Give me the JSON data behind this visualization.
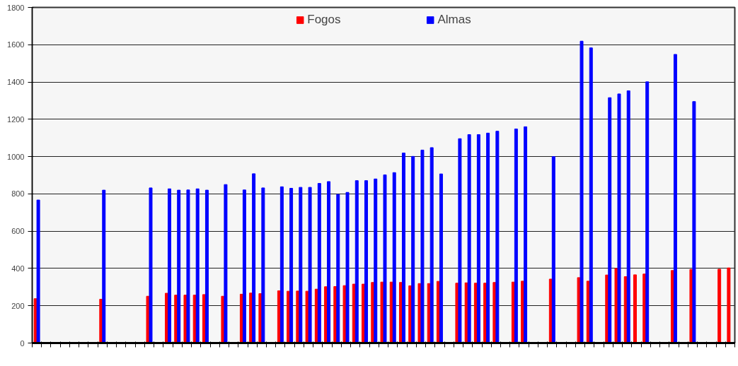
{
  "chart_data": {
    "type": "bar",
    "categories": [
      null,
      null,
      null,
      null,
      null,
      null,
      null,
      null,
      null,
      null,
      null,
      null,
      null,
      null,
      null,
      null,
      null,
      null,
      null,
      null,
      null,
      null,
      null,
      null,
      null,
      null,
      null,
      null,
      null,
      null,
      null,
      null,
      null,
      null,
      null,
      null,
      null,
      null,
      null,
      null,
      null,
      null,
      null,
      null,
      null,
      null,
      null,
      null,
      null,
      null,
      null,
      null,
      null,
      null,
      null,
      null,
      null,
      null,
      null,
      null,
      null,
      null,
      null,
      null,
      null,
      null,
      null,
      null,
      null,
      null,
      null,
      null,
      null,
      null,
      null
    ],
    "series": [
      {
        "name": "Fogos",
        "color": "#ff0000",
        "values": [
          238,
          null,
          null,
          null,
          null,
          null,
          null,
          235,
          null,
          null,
          null,
          null,
          251,
          null,
          267,
          257,
          257,
          257,
          260,
          null,
          251,
          null,
          262,
          268,
          265,
          null,
          280,
          278,
          279,
          278,
          289,
          302,
          303,
          308,
          316,
          316,
          325,
          327,
          327,
          325,
          307,
          319,
          319,
          331,
          null,
          321,
          323,
          321,
          321,
          325,
          null,
          327,
          332,
          null,
          null,
          343,
          null,
          null,
          351,
          332,
          null,
          365,
          400,
          356,
          366,
          370,
          null,
          null,
          389,
          null,
          395,
          null,
          null,
          396,
          403
        ]
      },
      {
        "name": "Almas",
        "color": "#0000ff",
        "values": [
          767,
          null,
          null,
          null,
          null,
          null,
          null,
          820,
          null,
          null,
          null,
          null,
          832,
          null,
          827,
          820,
          821,
          827,
          820,
          null,
          850,
          null,
          821,
          908,
          832,
          null,
          838,
          830,
          835,
          835,
          856,
          866,
          797,
          808,
          871,
          871,
          880,
          902,
          914,
          1019,
          1001,
          1035,
          1048,
          907,
          null,
          1096,
          1118,
          1118,
          1126,
          1136,
          null,
          1148,
          1160,
          null,
          null,
          1000,
          null,
          null,
          1619,
          1583,
          null,
          1316,
          1336,
          1353,
          null,
          1401,
          null,
          null,
          1548,
          null,
          1295,
          null,
          null,
          null,
          null
        ]
      }
    ],
    "ylim": [
      0,
      1800
    ],
    "yticks": [
      0,
      200,
      400,
      600,
      800,
      1000,
      1200,
      1400,
      1600,
      1800
    ],
    "grid": "y",
    "legend": "top",
    "tick_labels": "y"
  }
}
